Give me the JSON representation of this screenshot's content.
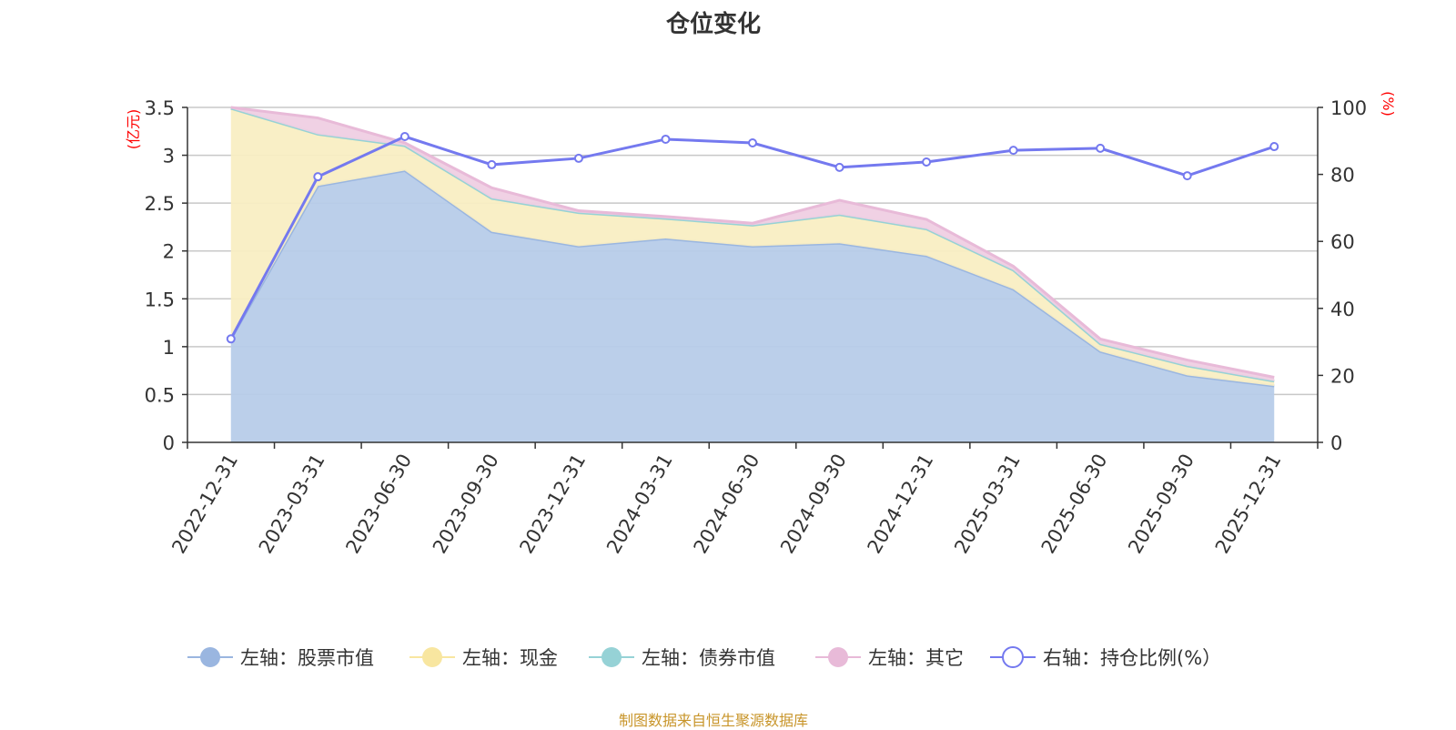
{
  "chart_data": {
    "type": "area",
    "title": "仓位变化",
    "source": "制图数据来自恒生聚源数据库",
    "categories": [
      "2022-12-31",
      "2023-03-31",
      "2023-06-30",
      "2023-09-30",
      "2023-12-31",
      "2024-03-31",
      "2024-06-30",
      "2024-09-30",
      "2024-12-31",
      "2025-03-31",
      "2025-06-30",
      "2025-09-30",
      "2025-12-31"
    ],
    "left_axis": {
      "label": "(亿元)",
      "ylim": [
        0,
        3.5
      ],
      "ticks": [
        "0",
        "0.5",
        "1",
        "1.5",
        "2",
        "2.5",
        "3",
        "3.5"
      ],
      "tick_values": [
        0,
        0.5,
        1,
        1.5,
        2,
        2.5,
        3,
        3.5
      ]
    },
    "right_axis": {
      "label": "(%)",
      "ylim": [
        0,
        100
      ],
      "ticks": [
        "0",
        "20",
        "40",
        "60",
        "80",
        "100"
      ],
      "tick_values": [
        0,
        20,
        40,
        60,
        80,
        100
      ]
    },
    "stacked": true,
    "grid": true,
    "legend_position": "bottom",
    "series": [
      {
        "name": "左轴：股票市值",
        "axis": "left",
        "kind": "area",
        "color": "#9ab6e0",
        "fill": "#b7cce9",
        "values": [
          1.08,
          2.68,
          2.84,
          2.2,
          2.05,
          2.13,
          2.05,
          2.08,
          1.95,
          1.6,
          0.95,
          0.7,
          0.59
        ]
      },
      {
        "name": "左轴：现金",
        "axis": "left",
        "kind": "area",
        "color": "#f8e6a0",
        "fill": "#f9eec3",
        "values": [
          2.41,
          0.54,
          0.26,
          0.35,
          0.35,
          0.21,
          0.22,
          0.3,
          0.28,
          0.2,
          0.08,
          0.1,
          0.05
        ]
      },
      {
        "name": "左轴：债券市值",
        "axis": "left",
        "kind": "area",
        "color": "#96d2d6",
        "fill": "#bfe4e6",
        "values": [
          0,
          0,
          0,
          0,
          0,
          0,
          0,
          0,
          0,
          0,
          0,
          0,
          0
        ]
      },
      {
        "name": "左轴：其它",
        "axis": "left",
        "kind": "area",
        "color": "#e8bad8",
        "fill": "#efcfe3",
        "values": [
          0.01,
          0.17,
          0.03,
          0.11,
          0.02,
          0.02,
          0.02,
          0.15,
          0.1,
          0.04,
          0.05,
          0.06,
          0.04
        ]
      },
      {
        "name": "右轴：持仓比例(%）",
        "axis": "right",
        "kind": "line",
        "color": "#7479ef",
        "values": [
          30.9,
          79.3,
          91.3,
          82.9,
          84.8,
          90.5,
          89.4,
          82.1,
          83.7,
          87.2,
          87.8,
          79.6,
          88.3
        ]
      }
    ]
  }
}
